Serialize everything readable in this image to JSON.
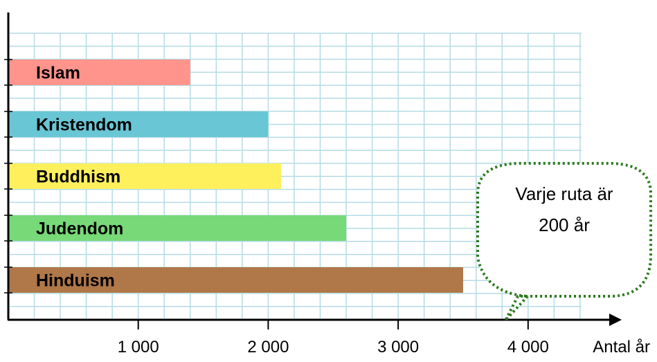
{
  "chart_data": {
    "type": "bar",
    "orientation": "horizontal",
    "categories": [
      "Islam",
      "Kristendom",
      "Buddhism",
      "Judendom",
      "Hinduism"
    ],
    "values": [
      1400,
      2000,
      2100,
      2600,
      3500
    ],
    "colors": [
      "#ff948c",
      "#68c6d5",
      "#fdf05c",
      "#78d978",
      "#b07749"
    ],
    "xlabel": "Antal år",
    "xticks": [
      1000,
      2000,
      3000,
      4000
    ],
    "xtick_labels": [
      "1 000",
      "2 000",
      "3 000",
      "4 000"
    ],
    "xlim": [
      0,
      4400
    ],
    "grid": true,
    "grid_step": 200,
    "grid_color": "#b3dbe4",
    "callout": {
      "line1": "Varje ruta är",
      "line2": "200 år",
      "border_color": "#2e7a1e"
    }
  }
}
